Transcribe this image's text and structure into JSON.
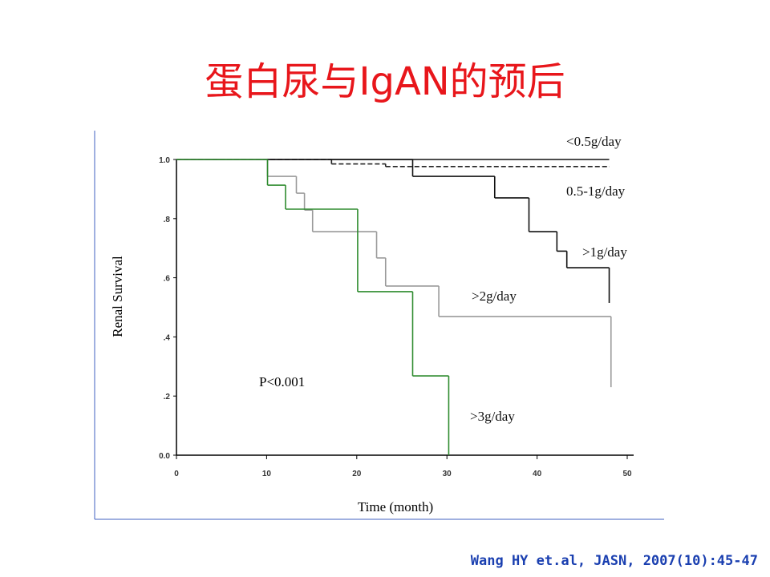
{
  "chart_data": {
    "type": "step",
    "title": "蛋白尿与IgAN的预后",
    "x_label": "Time (month)",
    "y_label": "Renal Survival",
    "annotation": "P<0.001",
    "source": "Wang HY et.al, JASN, 2007(10):45-47",
    "xlim": [
      0,
      50
    ],
    "xticks": [
      0,
      10,
      20,
      30,
      40,
      50
    ],
    "ylim": [
      0,
      1
    ],
    "yticks": [
      {
        "value": 0,
        "label": "0.0"
      },
      {
        "value": 0.2,
        "label": ".2"
      },
      {
        "value": 0.4,
        "label": ".4"
      },
      {
        "value": 0.6,
        "label": ".6"
      },
      {
        "value": 0.8,
        "label": ".8"
      },
      {
        "value": 1,
        "label": "1.0"
      }
    ],
    "series": [
      {
        "name": "<0.5g/day",
        "color": "#111111",
        "dashed": false,
        "x": [
          0,
          48
        ],
        "values": [
          1,
          1
        ]
      },
      {
        "name": "0.5-1g/day",
        "color": "#222222",
        "dashed": true,
        "x": [
          0,
          17.2,
          23.2,
          48
        ],
        "values": [
          1,
          0.985,
          0.976,
          0.976
        ]
      },
      {
        "name": ">1g/day",
        "color": "#111111",
        "dashed": false,
        "x": [
          0,
          26.2,
          35.3,
          39.1,
          42.2,
          43.3,
          48
        ],
        "values": [
          1,
          0.943,
          0.87,
          0.756,
          0.69,
          0.634,
          0.515
        ]
      },
      {
        "name": ">2g/day",
        "color": "#9a9a9a",
        "dashed": false,
        "x": [
          0,
          10.1,
          13.3,
          14.2,
          15.1,
          22.2,
          23.2,
          29.1,
          48.2
        ],
        "values": [
          1,
          0.943,
          0.886,
          0.829,
          0.756,
          0.667,
          0.572,
          0.469,
          0.23
        ]
      },
      {
        "name": ">3g/day",
        "color": "#2e8b2e",
        "dashed": false,
        "x": [
          0,
          10.1,
          12.1,
          20.1,
          26.2,
          30.2
        ],
        "values": [
          1,
          0.913,
          0.832,
          0.553,
          0.268,
          0
        ]
      }
    ]
  }
}
